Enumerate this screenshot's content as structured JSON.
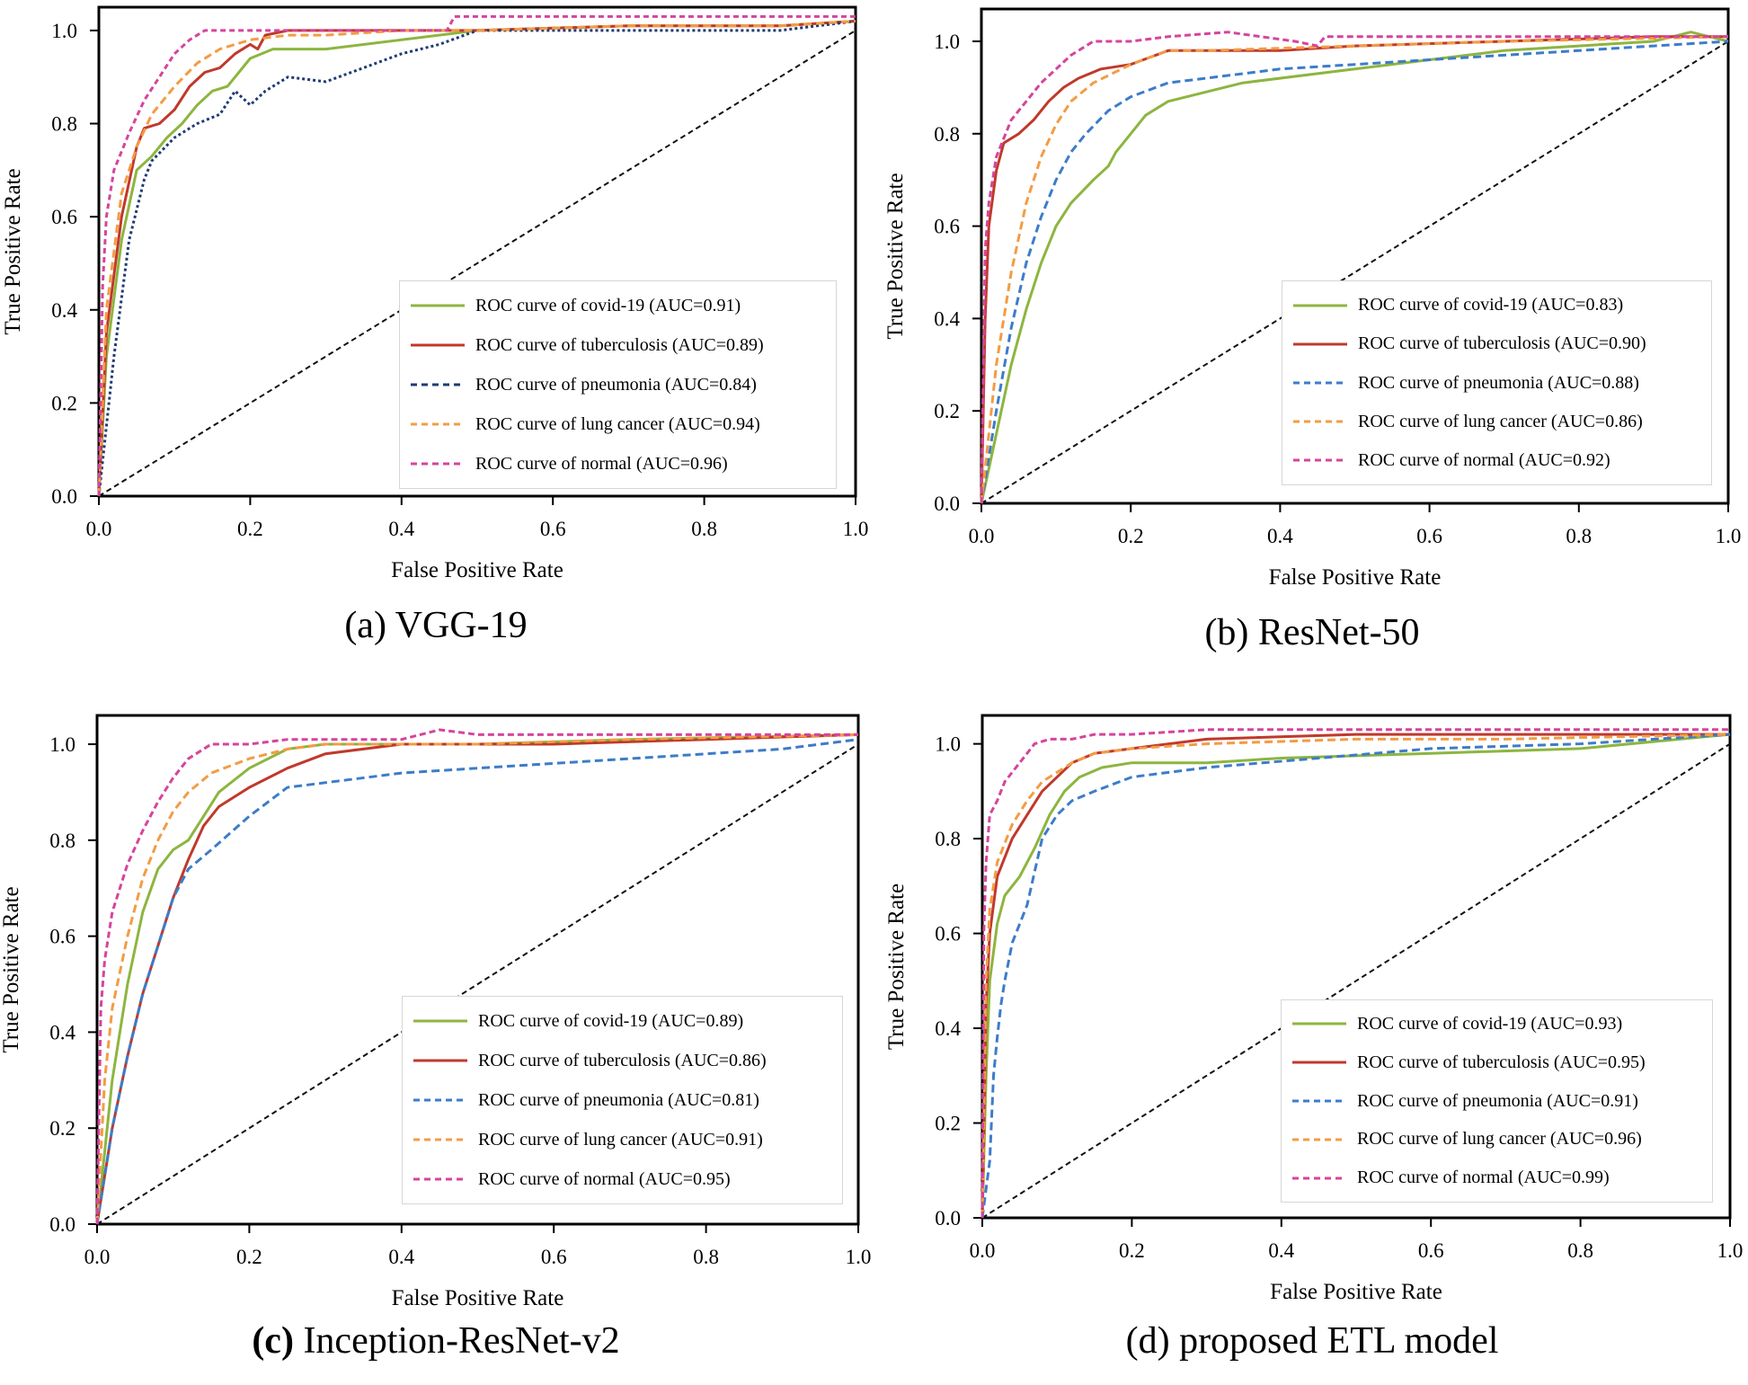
{
  "colors": {
    "covid-19": "#8db53f",
    "tuberculosis": "#c0392b",
    "pneumonia": "#1f3b73",
    "lung_cancer": "#f39c44",
    "normal": "#d6449c",
    "diagonal": "#111111",
    "pneumonia_light": "#3d7cc9"
  },
  "chart_data": [
    {
      "id": "a",
      "type": "line",
      "caption": {
        "label": "(a)",
        "text": " VGG-19"
      },
      "xlabel": "False Positive Rate",
      "ylabel": "True Positive Rate",
      "xlim": [
        0,
        1.0
      ],
      "ylim": [
        0,
        1.05
      ],
      "xticks": [
        "0.0",
        "0.2",
        "0.4",
        "0.6",
        "0.8",
        "1.0"
      ],
      "yticks": [
        "0.0",
        "0.2",
        "0.4",
        "0.6",
        "0.8",
        "1.0"
      ],
      "legend_position": "lower-right",
      "series": [
        {
          "name": "ROC curve of covid-19 (AUC=0.91)",
          "key": "covid-19",
          "dash": "solid",
          "x": [
            0,
            0.01,
            0.03,
            0.05,
            0.07,
            0.09,
            0.11,
            0.13,
            0.15,
            0.17,
            0.2,
            0.23,
            0.3,
            0.5,
            0.7,
            0.9,
            1.0
          ],
          "y": [
            0,
            0.3,
            0.55,
            0.7,
            0.73,
            0.77,
            0.8,
            0.84,
            0.87,
            0.88,
            0.94,
            0.96,
            0.96,
            1.0,
            1.01,
            1.01,
            1.02
          ]
        },
        {
          "name": "ROC curve of tuberculosis (AUC=0.89)",
          "key": "tuberculosis",
          "dash": "solid",
          "x": [
            0,
            0.01,
            0.03,
            0.05,
            0.06,
            0.08,
            0.1,
            0.12,
            0.14,
            0.16,
            0.18,
            0.2,
            0.21,
            0.22,
            0.25,
            0.35,
            0.5,
            0.7,
            0.9,
            1.0
          ],
          "y": [
            0,
            0.35,
            0.6,
            0.75,
            0.79,
            0.8,
            0.83,
            0.88,
            0.91,
            0.92,
            0.95,
            0.97,
            0.96,
            0.99,
            1.0,
            1.0,
            1.0,
            1.01,
            1.01,
            1.02
          ]
        },
        {
          "name": "ROC curve of pneumonia (AUC=0.84)",
          "key": "pneumonia",
          "dash": "3,3",
          "x": [
            0,
            0.02,
            0.04,
            0.06,
            0.07,
            0.1,
            0.13,
            0.16,
            0.18,
            0.2,
            0.22,
            0.25,
            0.3,
            0.35,
            0.4,
            0.45,
            0.5,
            0.6,
            0.7,
            0.8,
            0.9,
            1.0
          ],
          "y": [
            0,
            0.3,
            0.55,
            0.68,
            0.72,
            0.77,
            0.8,
            0.82,
            0.87,
            0.84,
            0.87,
            0.9,
            0.89,
            0.92,
            0.95,
            0.97,
            1.0,
            1.0,
            1.0,
            1.0,
            1.0,
            1.02
          ]
        },
        {
          "name": "ROC curve of lung cancer (AUC=0.94)",
          "key": "lung_cancer",
          "dash": "9,5",
          "x": [
            0,
            0.01,
            0.03,
            0.05,
            0.07,
            0.1,
            0.13,
            0.16,
            0.2,
            0.25,
            0.3,
            0.4,
            0.5,
            0.7,
            0.9,
            1.0
          ],
          "y": [
            0,
            0.4,
            0.65,
            0.75,
            0.82,
            0.88,
            0.93,
            0.96,
            0.98,
            0.99,
            0.99,
            1.0,
            1.0,
            1.01,
            1.01,
            1.02
          ]
        },
        {
          "name": "ROC curve of normal (AUC=0.96)",
          "key": "normal",
          "dash": "6,4",
          "x": [
            0,
            0.005,
            0.01,
            0.02,
            0.04,
            0.06,
            0.08,
            0.1,
            0.12,
            0.14,
            0.2,
            0.3,
            0.46,
            0.47,
            0.6,
            0.8,
            1.0
          ],
          "y": [
            0,
            0.45,
            0.6,
            0.7,
            0.78,
            0.85,
            0.9,
            0.95,
            0.98,
            1.0,
            1.0,
            1.0,
            1.0,
            1.03,
            1.03,
            1.03,
            1.03
          ]
        }
      ]
    },
    {
      "id": "b",
      "type": "line",
      "caption": {
        "label": "(b)",
        "text": " ResNet-50"
      },
      "xlabel": "False Positive Rate",
      "ylabel": "True Positive Rate",
      "xlim": [
        0,
        1.0
      ],
      "ylim": [
        0,
        1.07
      ],
      "xticks": [
        "0.0",
        "0.2",
        "0.4",
        "0.6",
        "0.8",
        "1.0"
      ],
      "yticks": [
        "0.0",
        "0.2",
        "0.4",
        "0.6",
        "0.8",
        "1.0"
      ],
      "legend_position": "lower-right",
      "series": [
        {
          "name": "ROC curve of covid-19 (AUC=0.83)",
          "key": "covid-19",
          "dash": "solid",
          "x": [
            0,
            0.02,
            0.04,
            0.06,
            0.08,
            0.1,
            0.12,
            0.15,
            0.17,
            0.18,
            0.2,
            0.22,
            0.25,
            0.35,
            0.5,
            0.6,
            0.7,
            0.8,
            0.9,
            0.95,
            1.0
          ],
          "y": [
            0,
            0.15,
            0.3,
            0.42,
            0.52,
            0.6,
            0.65,
            0.7,
            0.73,
            0.76,
            0.8,
            0.84,
            0.87,
            0.91,
            0.94,
            0.96,
            0.98,
            0.99,
            1.0,
            1.02,
            1.0
          ]
        },
        {
          "name": "ROC curve of tuberculosis (AUC=0.90)",
          "key": "tuberculosis",
          "dash": "solid",
          "x": [
            0,
            0.005,
            0.01,
            0.02,
            0.03,
            0.05,
            0.07,
            0.09,
            0.11,
            0.13,
            0.16,
            0.2,
            0.25,
            0.3,
            0.4,
            0.5,
            0.7,
            0.9,
            1.0
          ],
          "y": [
            0,
            0.4,
            0.6,
            0.72,
            0.78,
            0.8,
            0.83,
            0.87,
            0.9,
            0.92,
            0.94,
            0.95,
            0.98,
            0.98,
            0.98,
            0.99,
            1.0,
            1.01,
            1.01
          ]
        },
        {
          "name": "ROC curve of pneumonia (AUC=0.88)",
          "key": "pneumonia_light",
          "dash": "9,5",
          "x": [
            0,
            0.02,
            0.04,
            0.06,
            0.08,
            0.1,
            0.12,
            0.14,
            0.17,
            0.2,
            0.25,
            0.3,
            0.4,
            0.5,
            0.6,
            0.7,
            0.8,
            0.9,
            1.0
          ],
          "y": [
            0,
            0.2,
            0.38,
            0.52,
            0.62,
            0.7,
            0.76,
            0.8,
            0.85,
            0.88,
            0.91,
            0.92,
            0.94,
            0.95,
            0.96,
            0.97,
            0.98,
            0.99,
            1.0
          ]
        },
        {
          "name": "ROC curve of lung cancer (AUC=0.86)",
          "key": "lung_cancer",
          "dash": "9,5",
          "x": [
            0,
            0.02,
            0.04,
            0.06,
            0.08,
            0.1,
            0.12,
            0.15,
            0.2,
            0.25,
            0.3,
            0.5,
            0.7,
            1.0
          ],
          "y": [
            0,
            0.3,
            0.5,
            0.65,
            0.75,
            0.82,
            0.87,
            0.91,
            0.95,
            0.98,
            0.98,
            0.99,
            1.0,
            1.01
          ]
        },
        {
          "name": "ROC curve of normal (AUC=0.92)",
          "key": "normal",
          "dash": "7,4",
          "x": [
            0,
            0.005,
            0.01,
            0.02,
            0.04,
            0.06,
            0.08,
            0.1,
            0.12,
            0.15,
            0.2,
            0.25,
            0.33,
            0.42,
            0.45,
            0.46,
            0.6,
            0.8,
            1.0
          ],
          "y": [
            0,
            0.55,
            0.65,
            0.75,
            0.83,
            0.87,
            0.91,
            0.94,
            0.97,
            1.0,
            1.0,
            1.01,
            1.02,
            1.0,
            0.99,
            1.01,
            1.01,
            1.01,
            1.01
          ]
        }
      ]
    },
    {
      "id": "c",
      "type": "line",
      "caption": {
        "label": "(c)",
        "text": " Inception-ResNet-v2"
      },
      "xlabel": "False Positive Rate",
      "ylabel": "True Positive Rate",
      "xlim": [
        0,
        1.0
      ],
      "ylim": [
        0,
        1.06
      ],
      "xticks": [
        "0.0",
        "0.2",
        "0.4",
        "0.6",
        "0.8",
        "1.0"
      ],
      "yticks": [
        "0.0",
        "0.2",
        "0.4",
        "0.6",
        "0.8",
        "1.0"
      ],
      "legend_position": "lower-right",
      "series": [
        {
          "name": "ROC curve of covid-19 (AUC=0.89)",
          "key": "covid-19",
          "dash": "solid",
          "x": [
            0,
            0.02,
            0.04,
            0.06,
            0.08,
            0.1,
            0.12,
            0.14,
            0.16,
            0.2,
            0.25,
            0.3,
            0.5,
            0.7,
            1.0
          ],
          "y": [
            0,
            0.3,
            0.5,
            0.65,
            0.74,
            0.78,
            0.8,
            0.85,
            0.9,
            0.95,
            0.99,
            1.0,
            1.0,
            1.01,
            1.02
          ]
        },
        {
          "name": "ROC curve of tuberculosis (AUC=0.86)",
          "key": "tuberculosis",
          "dash": "solid",
          "x": [
            0,
            0.02,
            0.04,
            0.06,
            0.08,
            0.1,
            0.12,
            0.14,
            0.16,
            0.2,
            0.25,
            0.3,
            0.4,
            0.6,
            0.8,
            1.0
          ],
          "y": [
            0,
            0.2,
            0.35,
            0.48,
            0.58,
            0.68,
            0.76,
            0.83,
            0.87,
            0.91,
            0.95,
            0.98,
            1.0,
            1.0,
            1.01,
            1.02
          ]
        },
        {
          "name": "ROC curve of pneumonia (AUC=0.81)",
          "key": "pneumonia_light",
          "dash": "9,5",
          "x": [
            0,
            0.02,
            0.04,
            0.06,
            0.08,
            0.1,
            0.12,
            0.15,
            0.2,
            0.25,
            0.3,
            0.4,
            0.5,
            0.7,
            0.9,
            1.0
          ],
          "y": [
            0,
            0.2,
            0.35,
            0.48,
            0.58,
            0.68,
            0.74,
            0.78,
            0.85,
            0.91,
            0.92,
            0.94,
            0.95,
            0.97,
            0.99,
            1.01
          ]
        },
        {
          "name": "ROC curve of lung cancer (AUC=0.91)",
          "key": "lung_cancer",
          "dash": "9,5",
          "x": [
            0,
            0.01,
            0.02,
            0.04,
            0.06,
            0.08,
            0.1,
            0.12,
            0.15,
            0.2,
            0.25,
            0.3,
            0.5,
            0.7,
            1.0
          ],
          "y": [
            0,
            0.3,
            0.45,
            0.6,
            0.72,
            0.8,
            0.86,
            0.9,
            0.94,
            0.97,
            0.99,
            1.0,
            1.0,
            1.01,
            1.02
          ]
        },
        {
          "name": "ROC curve of normal (AUC=0.95)",
          "key": "normal",
          "dash": "7,4",
          "x": [
            0,
            0.005,
            0.01,
            0.02,
            0.04,
            0.06,
            0.08,
            0.1,
            0.12,
            0.15,
            0.2,
            0.25,
            0.4,
            0.45,
            0.5,
            0.7,
            1.0
          ],
          "y": [
            0,
            0.45,
            0.55,
            0.65,
            0.75,
            0.82,
            0.88,
            0.93,
            0.97,
            1.0,
            1.0,
            1.01,
            1.01,
            1.03,
            1.02,
            1.02,
            1.02
          ]
        }
      ]
    },
    {
      "id": "d",
      "type": "line",
      "caption": {
        "label": "(d)",
        "text": " proposed ETL model"
      },
      "xlabel": "False Positive Rate",
      "ylabel": "True Positive Rate",
      "xlim": [
        0,
        1.0
      ],
      "ylim": [
        0,
        1.06
      ],
      "xticks": [
        "0.0",
        "0.2",
        "0.4",
        "0.6",
        "0.8",
        "1.0"
      ],
      "yticks": [
        "0.0",
        "0.2",
        "0.4",
        "0.6",
        "0.8",
        "1.0"
      ],
      "legend_position": "lower-right",
      "series": [
        {
          "name": "ROC curve of covid-19 (AUC=0.93)",
          "key": "covid-19",
          "dash": "solid",
          "x": [
            0,
            0.005,
            0.01,
            0.02,
            0.03,
            0.05,
            0.07,
            0.09,
            0.11,
            0.13,
            0.16,
            0.2,
            0.3,
            0.4,
            0.6,
            0.8,
            1.0
          ],
          "y": [
            0,
            0.3,
            0.5,
            0.62,
            0.68,
            0.72,
            0.78,
            0.85,
            0.9,
            0.93,
            0.95,
            0.96,
            0.96,
            0.97,
            0.98,
            0.99,
            1.02
          ]
        },
        {
          "name": "ROC curve of tuberculosis (AUC=0.95)",
          "key": "tuberculosis",
          "dash": "solid",
          "x": [
            0,
            0.005,
            0.01,
            0.02,
            0.04,
            0.06,
            0.08,
            0.1,
            0.12,
            0.15,
            0.2,
            0.25,
            0.3,
            0.5,
            0.7,
            1.0
          ],
          "y": [
            0,
            0.45,
            0.6,
            0.72,
            0.8,
            0.85,
            0.9,
            0.93,
            0.96,
            0.98,
            0.99,
            1.0,
            1.01,
            1.02,
            1.02,
            1.02
          ]
        },
        {
          "name": "ROC curve of pneumonia (AUC=0.91)",
          "key": "pneumonia_light",
          "dash": "9,5",
          "x": [
            0,
            0.01,
            0.015,
            0.02,
            0.025,
            0.03,
            0.04,
            0.05,
            0.06,
            0.07,
            0.08,
            0.1,
            0.12,
            0.15,
            0.2,
            0.3,
            0.45,
            0.6,
            0.8,
            1.0
          ],
          "y": [
            0,
            0.12,
            0.3,
            0.38,
            0.45,
            0.5,
            0.58,
            0.62,
            0.66,
            0.73,
            0.8,
            0.85,
            0.88,
            0.9,
            0.93,
            0.95,
            0.97,
            0.99,
            1.0,
            1.02
          ]
        },
        {
          "name": "ROC curve of lung cancer (AUC=0.96)",
          "key": "lung_cancer",
          "dash": "9,5",
          "x": [
            0,
            0.005,
            0.01,
            0.02,
            0.04,
            0.06,
            0.08,
            0.1,
            0.12,
            0.15,
            0.2,
            0.3,
            0.5,
            0.7,
            1.0
          ],
          "y": [
            0,
            0.5,
            0.65,
            0.75,
            0.83,
            0.88,
            0.92,
            0.94,
            0.96,
            0.98,
            0.99,
            1.0,
            1.01,
            1.01,
            1.02
          ]
        },
        {
          "name": "ROC curve of normal (AUC=0.99)",
          "key": "normal",
          "dash": "7,4",
          "x": [
            0,
            0.002,
            0.005,
            0.01,
            0.02,
            0.03,
            0.05,
            0.07,
            0.09,
            0.1,
            0.12,
            0.15,
            0.2,
            0.3,
            0.5,
            0.7,
            1.0
          ],
          "y": [
            0,
            0.6,
            0.75,
            0.85,
            0.88,
            0.92,
            0.96,
            1.0,
            1.01,
            1.01,
            1.01,
            1.02,
            1.02,
            1.03,
            1.03,
            1.03,
            1.03
          ]
        }
      ]
    }
  ]
}
